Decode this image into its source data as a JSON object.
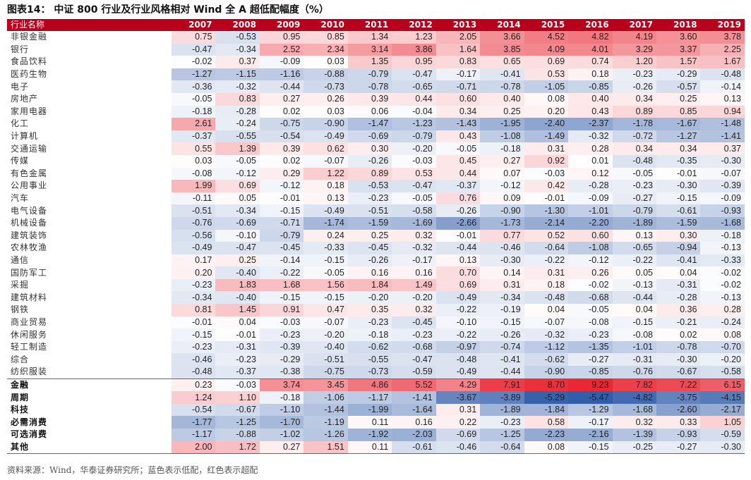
{
  "title": "图表14： 中证 800 行业及行业风格相对 Wind 全 A 超低配幅度（%）",
  "source": "资料来源：Wind，华泰证券研究所；蓝色表示低配，红色表示超配",
  "colors": {
    "header_bg": "#b8001c",
    "over": "#e8232f",
    "under": "#2f5aa8"
  },
  "chart_data": {
    "type": "heatmap",
    "header_label": "行业名称",
    "years": [
      "2007",
      "2008",
      "2009",
      "2010",
      "2011",
      "2012",
      "2013",
      "2014",
      "2015",
      "2016",
      "2017",
      "2018",
      "2019"
    ],
    "industries": [
      {
        "name": "非银金融",
        "values": [
          0.75,
          -0.53,
          0.95,
          0.85,
          1.34,
          1.23,
          2.05,
          3.66,
          4.52,
          4.82,
          4.19,
          3.6,
          3.78
        ]
      },
      {
        "name": "银行",
        "values": [
          -0.47,
          -0.34,
          2.52,
          2.34,
          3.14,
          3.86,
          1.64,
          3.85,
          4.09,
          4.01,
          3.29,
          3.37,
          2.25
        ]
      },
      {
        "name": "食品饮料",
        "values": [
          -0.02,
          0.37,
          -0.09,
          0.03,
          1.35,
          0.95,
          0.83,
          0.65,
          0.69,
          0.74,
          1.2,
          1.57,
          1.67
        ]
      },
      {
        "name": "医药生物",
        "values": [
          -1.27,
          -1.15,
          -1.16,
          -0.88,
          -0.79,
          -0.47,
          -0.17,
          -0.41,
          0.53,
          0.18,
          -0.23,
          -0.29,
          -0.48
        ]
      },
      {
        "name": "电子",
        "values": [
          -0.36,
          -0.32,
          -0.44,
          -0.73,
          -0.78,
          -0.65,
          -0.71,
          -0.78,
          -1.05,
          -0.85,
          -0.26,
          -0.57,
          -0.14
        ]
      },
      {
        "name": "房地产",
        "values": [
          -0.05,
          0.83,
          0.27,
          0.26,
          0.39,
          0.44,
          0.6,
          0.4,
          0.08,
          0.4,
          0.34,
          0.25,
          0.13
        ]
      },
      {
        "name": "家用电器",
        "values": [
          -0.18,
          -0.28,
          0.02,
          0.03,
          0.06,
          -0.04,
          0.34,
          0.25,
          0.2,
          0.43,
          0.89,
          0.85,
          0.94
        ]
      },
      {
        "name": "化工",
        "values": [
          2.61,
          -0.24,
          -0.75,
          -0.9,
          -1.47,
          -1.23,
          -1.43,
          -1.95,
          -2.4,
          -2.37,
          -1.78,
          -1.67,
          -1.48
        ]
      },
      {
        "name": "计算机",
        "values": [
          -0.37,
          -0.55,
          -0.54,
          -0.49,
          -0.69,
          -0.79,
          0.43,
          -1.08,
          -1.49,
          -0.32,
          -0.72,
          -1.27,
          -1.41
        ]
      },
      {
        "name": "交通运输",
        "values": [
          0.55,
          1.39,
          0.39,
          0.62,
          0.3,
          -0.2,
          -0.05,
          -0.18,
          0.31,
          0.28,
          0.34,
          0.34,
          0.37
        ]
      },
      {
        "name": "传媒",
        "values": [
          0.03,
          -0.05,
          0.02,
          -0.07,
          -0.26,
          -0.03,
          0.45,
          0.27,
          0.92,
          0.01,
          -0.48,
          -0.35,
          -0.3
        ]
      },
      {
        "name": "有色金属",
        "values": [
          -0.08,
          -0.12,
          0.29,
          1.22,
          0.89,
          0.53,
          0.44,
          0.07,
          -0.03,
          0.12,
          -0.05,
          -0.01,
          -0.07
        ]
      },
      {
        "name": "公用事业",
        "values": [
          1.99,
          0.69,
          -0.12,
          0.18,
          -0.53,
          -0.47,
          -0.37,
          -0.12,
          0.42,
          -0.28,
          -0.23,
          -0.3,
          -0.39
        ]
      },
      {
        "name": "汽车",
        "values": [
          -0.11,
          0.05,
          -0.01,
          0.13,
          -0.23,
          -0.05,
          0.76,
          0.09,
          -0.01,
          -0.09,
          -0.27,
          -0.15,
          -0.09
        ]
      },
      {
        "name": "电气设备",
        "values": [
          -0.51,
          -0.34,
          -0.15,
          -0.49,
          -0.51,
          -0.58,
          -0.26,
          -0.9,
          -1.3,
          -1.01,
          -0.79,
          -0.61,
          -0.93
        ]
      },
      {
        "name": "机械设备",
        "values": [
          -0.76,
          -0.69,
          -0.71,
          -1.74,
          -1.59,
          -1.69,
          -2.66,
          -1.73,
          -2.14,
          -2.2,
          -1.89,
          -1.59,
          -1.68
        ]
      },
      {
        "name": "建筑装饰",
        "values": [
          -0.56,
          -0.1,
          -0.79,
          0.24,
          0.25,
          0.32,
          -0.01,
          0.77,
          0.52,
          0.6,
          0.13,
          0.3,
          -0.18
        ]
      },
      {
        "name": "农林牧渔",
        "values": [
          -0.49,
          -0.47,
          -0.45,
          -0.33,
          -0.45,
          -0.32,
          -0.44,
          -0.46,
          -0.64,
          -1.08,
          -0.65,
          -0.94,
          -0.13
        ]
      },
      {
        "name": "通信",
        "values": [
          0.17,
          0.25,
          -0.14,
          -0.15,
          -0.26,
          -0.17,
          0.13,
          -0.3,
          -0.22,
          -0.12,
          -0.22,
          -0.41,
          -0.33
        ]
      },
      {
        "name": "国防军工",
        "values": [
          0.2,
          -0.4,
          -0.22,
          -0.05,
          0.16,
          0.16,
          0.7,
          0.14,
          0.31,
          0.26,
          0.05,
          0.04,
          -0.02
        ]
      },
      {
        "name": "采掘",
        "values": [
          -0.23,
          1.83,
          1.68,
          1.56,
          1.84,
          1.49,
          0.69,
          0.31,
          0.18,
          -0.02,
          -0.13,
          -0.31,
          -0.02
        ]
      },
      {
        "name": "建筑材料",
        "values": [
          -0.34,
          -0.4,
          -0.15,
          -0.15,
          -0.2,
          -0.2,
          -0.49,
          -0.34,
          -0.48,
          -0.68,
          -0.44,
          -0.28,
          -0.13
        ]
      },
      {
        "name": "钢铁",
        "values": [
          0.81,
          1.45,
          0.91,
          0.47,
          0.35,
          0.32,
          -0.22,
          -0.19,
          0.04,
          -0.05,
          0.04,
          0.36,
          0.28
        ]
      },
      {
        "name": "商业贸易",
        "values": [
          -0.01,
          0.04,
          -0.03,
          -0.07,
          -0.23,
          -0.45,
          -0.1,
          -0.15,
          -0.07,
          -0.08,
          -0.15,
          -0.21,
          -0.24
        ]
      },
      {
        "name": "休闲服务",
        "values": [
          -0.15,
          -0.01,
          -0.23,
          -0.2,
          -0.18,
          -0.23,
          -0.22,
          -0.26,
          -0.32,
          -0.23,
          -0.08,
          0.02,
          0.08
        ]
      },
      {
        "name": "轻工制造",
        "values": [
          -0.23,
          -0.31,
          -0.39,
          -0.4,
          -0.62,
          -0.68,
          -0.97,
          -0.74,
          -1.12,
          -1.35,
          -1.01,
          -0.78,
          -0.7
        ]
      },
      {
        "name": "综合",
        "values": [
          -0.46,
          -0.23,
          -0.29,
          -0.51,
          -0.55,
          -0.47,
          -0.48,
          -0.41,
          -0.62,
          -0.27,
          -0.31,
          -0.3,
          -0.2
        ]
      },
      {
        "name": "纺织服装",
        "values": [
          -0.48,
          -0.37,
          -0.38,
          -0.75,
          -0.73,
          -0.59,
          -0.49,
          -0.44,
          -0.9,
          -0.85,
          -0.76,
          -0.67,
          -0.58
        ]
      }
    ],
    "groups": [
      {
        "name": "金融",
        "values": [
          0.23,
          -0.03,
          3.74,
          3.45,
          4.86,
          5.52,
          4.29,
          7.91,
          8.7,
          9.23,
          7.82,
          7.22,
          6.15
        ]
      },
      {
        "name": "周期",
        "values": [
          1.24,
          1.1,
          -0.18,
          -1.06,
          -1.17,
          -1.41,
          -3.67,
          -3.89,
          -5.29,
          -5.47,
          -4.82,
          -3.75,
          -4.15
        ]
      },
      {
        "name": "科技",
        "values": [
          -0.54,
          -0.67,
          -1.1,
          -1.44,
          -1.99,
          -1.64,
          0.31,
          -1.89,
          -1.84,
          -1.29,
          -1.68,
          -2.6,
          -2.17
        ]
      },
      {
        "name": "必需消费",
        "values": [
          -1.77,
          -1.25,
          -1.7,
          -1.19,
          0.11,
          0.16,
          0.22,
          -0.23,
          0.58,
          -0.17,
          0.32,
          0.33,
          1.05
        ]
      },
      {
        "name": "可选消费",
        "values": [
          -1.17,
          -0.88,
          -1.02,
          -1.26,
          -1.92,
          -2.03,
          -0.69,
          -1.25,
          -2.23,
          -2.16,
          -1.39,
          -0.93,
          -0.59
        ]
      },
      {
        "name": "其他",
        "values": [
          2.0,
          1.72,
          0.27,
          1.51,
          0.11,
          -0.61,
          -0.46,
          -0.64,
          0.08,
          -0.15,
          -0.25,
          -0.27,
          -0.3
        ]
      }
    ]
  }
}
